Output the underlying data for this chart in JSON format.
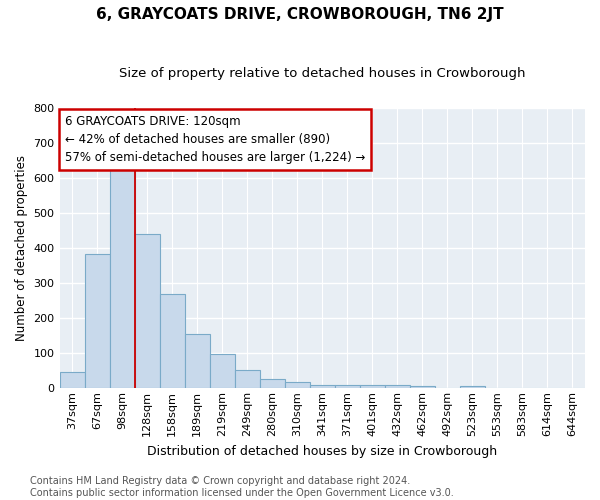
{
  "title": "6, GRAYCOATS DRIVE, CROWBOROUGH, TN6 2JT",
  "subtitle": "Size of property relative to detached houses in Crowborough",
  "xlabel": "Distribution of detached houses by size in Crowborough",
  "ylabel": "Number of detached properties",
  "categories": [
    "37sqm",
    "67sqm",
    "98sqm",
    "128sqm",
    "158sqm",
    "189sqm",
    "219sqm",
    "249sqm",
    "280sqm",
    "310sqm",
    "341sqm",
    "371sqm",
    "401sqm",
    "432sqm",
    "462sqm",
    "492sqm",
    "523sqm",
    "553sqm",
    "583sqm",
    "614sqm",
    "644sqm"
  ],
  "values": [
    47,
    383,
    625,
    440,
    268,
    155,
    97,
    52,
    27,
    17,
    10,
    10,
    10,
    10,
    7,
    0,
    7,
    0,
    0,
    0,
    0
  ],
  "bar_color": "#c8d9eb",
  "bar_edge_color": "#7aaac8",
  "vline_color": "#cc0000",
  "annotation_line1": "6 GRAYCOATS DRIVE: 120sqm",
  "annotation_line2": "← 42% of detached houses are smaller (890)",
  "annotation_line3": "57% of semi-detached houses are larger (1,224) →",
  "annotation_box_color": "#ffffff",
  "annotation_box_edge": "#cc0000",
  "ylim": [
    0,
    800
  ],
  "bg_color": "#e8eef4",
  "grid_color": "#ffffff",
  "footer": "Contains HM Land Registry data © Crown copyright and database right 2024.\nContains public sector information licensed under the Open Government Licence v3.0.",
  "title_fontsize": 11,
  "subtitle_fontsize": 9.5,
  "xlabel_fontsize": 9,
  "ylabel_fontsize": 8.5,
  "tick_fontsize": 8,
  "footer_fontsize": 7,
  "annot_fontsize": 8.5
}
